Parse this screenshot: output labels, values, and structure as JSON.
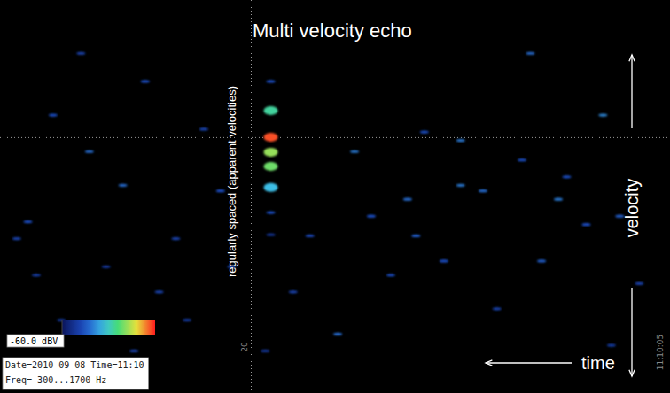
{
  "chart_data": {
    "type": "spectrogram",
    "title": "Multi velocity echo",
    "x_label": "time",
    "y_label": "velocity",
    "annotations": [
      "regularly spaced (apparent velocities)",
      "Date=2010-09-08 Time=11:10",
      "Freq= 300...1700 Hz"
    ],
    "xlim": [
      29,
      5
    ],
    "xticks": [
      {
        "value": 20,
        "label": "20"
      },
      {
        "value": 5,
        "label": "11:10:05"
      }
    ],
    "ylim": [
      300,
      1700
    ],
    "hlines": [
      1210
    ],
    "tick_labels": "x",
    "grid": false,
    "x": [
      19.3,
      19.3,
      19.3,
      19.3,
      19.3,
      19.3,
      19.3,
      19.3,
      23.8,
      24.6,
      22.7,
      27.1,
      25.8,
      28.0,
      28.4,
      25.2,
      23.3,
      21.1,
      21.7,
      26.8,
      24.2,
      22.3,
      20.7,
      18.5,
      16.9,
      16.3,
      15.7,
      14.4,
      14.1,
      13.1,
      12.5,
      11.7,
      11.2,
      10.3,
      9.6,
      9.0,
      8.0,
      7.4,
      6.8,
      6.1,
      10.0,
      13.8,
      17.9,
      15.0,
      12.5,
      26.1,
      27.7,
      19.5,
      7.1,
      8.7
    ],
    "y": [
      1410,
      1306,
      1211,
      1158,
      1107,
      1032,
      943,
      864,
      1410,
      1040,
      850,
      1290,
      1160,
      910,
      850,
      750,
      660,
      1020,
      1240,
      560,
      450,
      560,
      750,
      660,
      510,
      1160,
      930,
      990,
      860,
      770,
      1040,
      1020,
      600,
      1130,
      770,
      990,
      900,
      1290,
      930,
      690,
      1510,
      1230,
      860,
      720,
      1200,
      1510,
      720,
      450,
      470,
      1070
    ],
    "levels": [
      -50,
      -38,
      -22,
      -32,
      -34,
      -42,
      -50,
      -55,
      -50,
      -48,
      -52,
      -50,
      -48,
      -50,
      -52,
      -54,
      -52,
      -50,
      -52,
      -54,
      -52,
      -53,
      -51,
      -52,
      -48,
      -47,
      -50,
      -48,
      -49,
      -50,
      -47,
      -48,
      -52,
      -50,
      -49,
      -47,
      -50,
      -46,
      -49,
      -52,
      -48,
      -50,
      -52,
      -51,
      -47,
      -52,
      -53,
      -54,
      -53,
      -50
    ],
    "color_range": [
      -60,
      -20
    ],
    "color_ticks": [
      {
        "value": -60,
        "label": "-60.0 dBV"
      }
    ]
  }
}
